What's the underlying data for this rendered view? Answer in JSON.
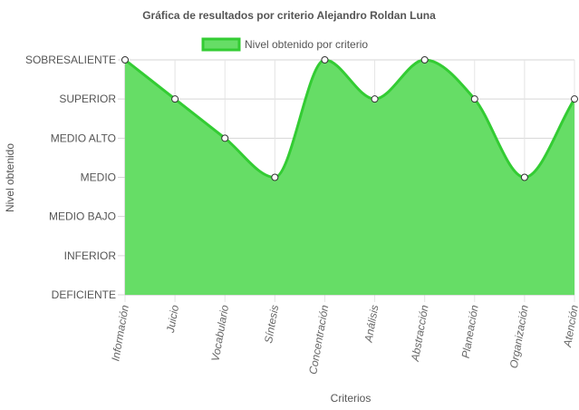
{
  "chart_data": {
    "type": "area",
    "title": "Gráfica de resultados por criterio Alejandro Roldan Luna",
    "xlabel": "Criterios",
    "ylabel": "Nivel obtenido",
    "levels": [
      "DEFICIENTE",
      "INFERIOR",
      "MEDIO BAJO",
      "MEDIO",
      "MEDIO ALTO",
      "SUPERIOR",
      "SOBRESALIENTE"
    ],
    "categories": [
      "Información",
      "Juicio",
      "Vocabulario",
      "Síntesis",
      "Concentración",
      "Análisis",
      "Abstracción",
      "Planeación",
      "Organización",
      "Atención"
    ],
    "series": [
      {
        "name": "Nivel obtenido por criterio",
        "values": [
          "SOBRESALIENTE",
          "SUPERIOR",
          "MEDIO ALTO",
          "MEDIO",
          "SOBRESALIENTE",
          "SUPERIOR",
          "SOBRESALIENTE",
          "SUPERIOR",
          "MEDIO",
          "SUPERIOR"
        ],
        "fill_color": "#66dd66",
        "line_color": "#33cc33"
      }
    ],
    "legend_position": "top",
    "grid": true
  }
}
